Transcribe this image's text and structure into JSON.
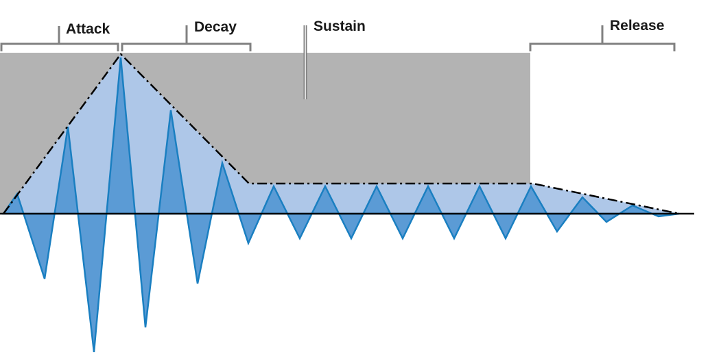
{
  "diagram": {
    "phases": [
      {
        "key": "attack",
        "label": "Attack"
      },
      {
        "key": "decay",
        "label": "Decay"
      },
      {
        "key": "sustain",
        "label": "Sustain"
      },
      {
        "key": "release",
        "label": "Release"
      }
    ]
  },
  "colors": {
    "sustain_region": "#b3b3b3",
    "envelope_fill": "#aec7e8",
    "wave_fill": "#5b9bd5",
    "wave_stroke": "#1a7fc1",
    "envelope_line": "#000000",
    "bracket": "#808080",
    "label": "#1a1a1a"
  }
}
